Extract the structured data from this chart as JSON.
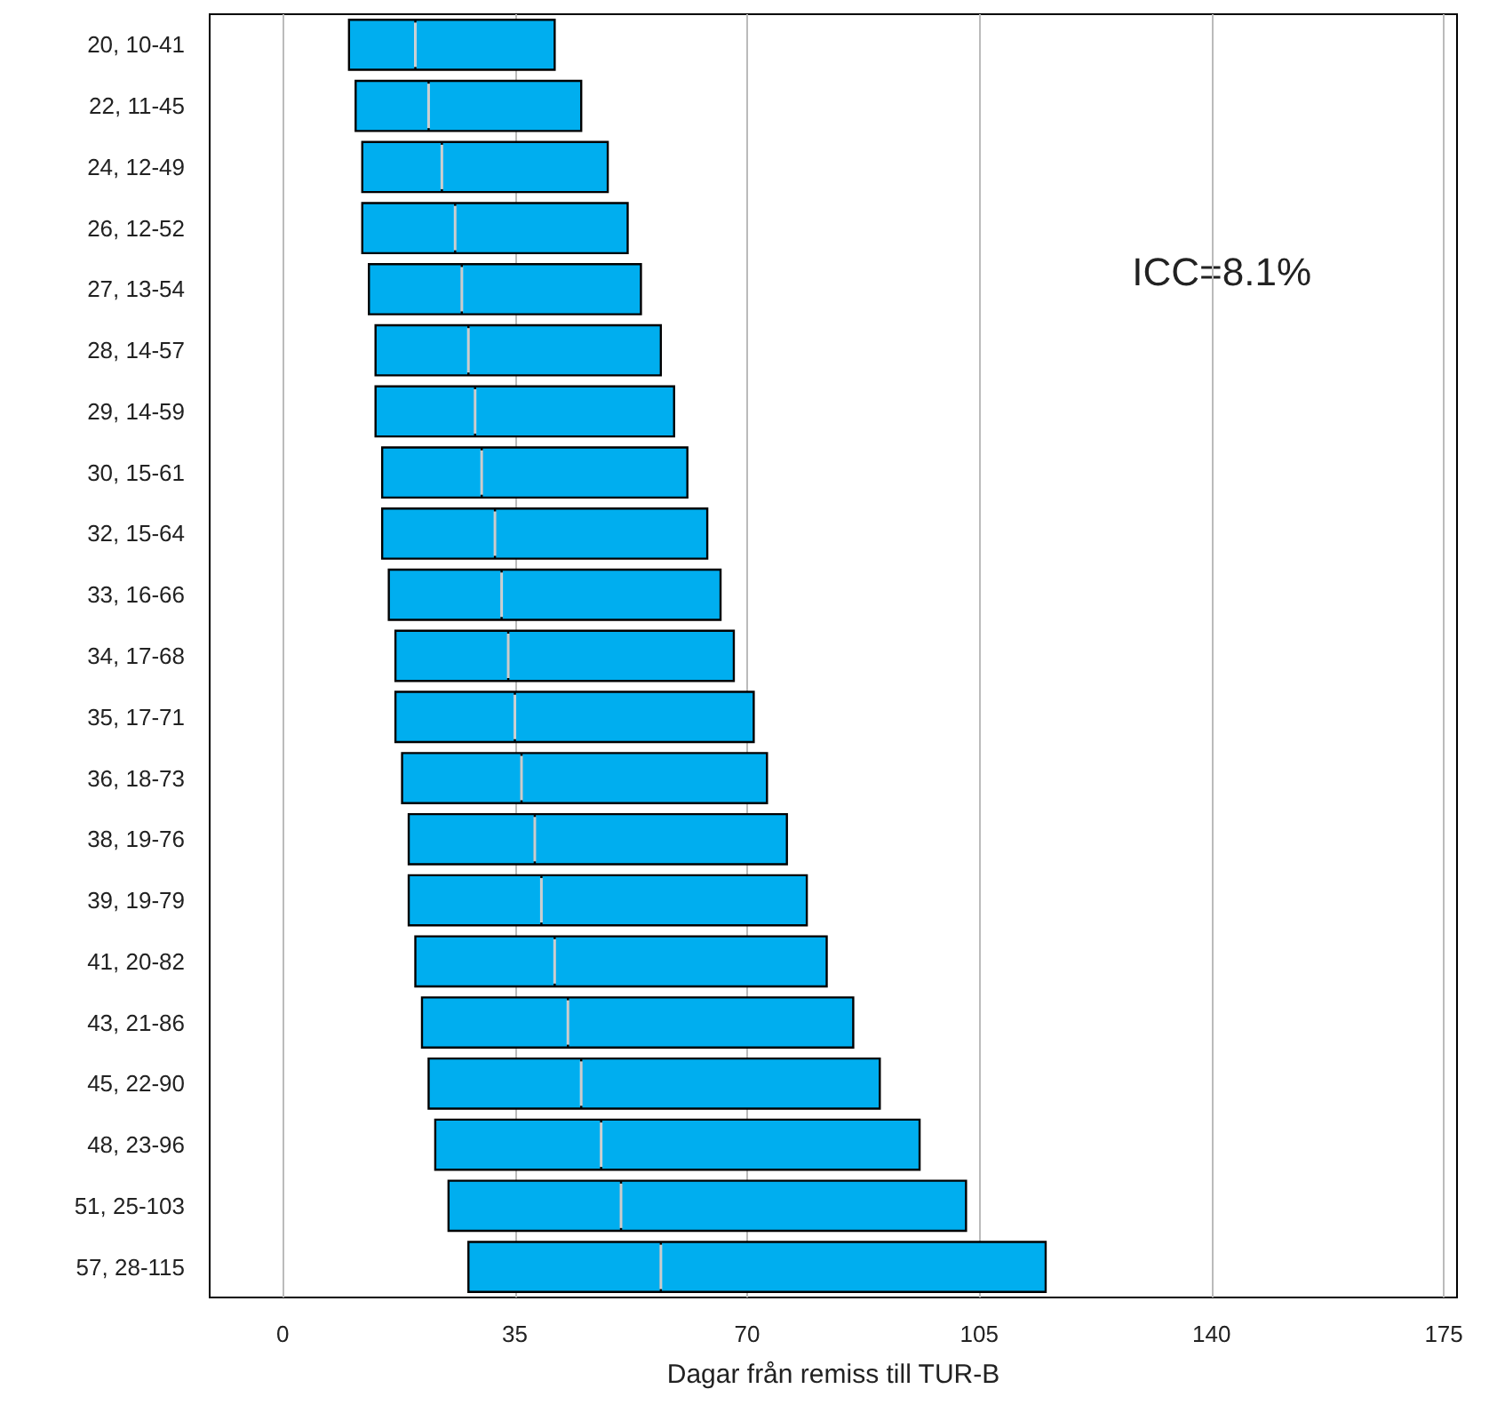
{
  "chart_data": {
    "type": "box",
    "orientation": "horizontal",
    "xlabel": "Dagar från remiss till TUR-B",
    "categories": [
      "20, 10-41",
      "22, 11-45",
      "24, 12-49",
      "26, 12-52",
      "27, 13-54",
      "28, 14-57",
      "29, 14-59",
      "30, 15-61",
      "32, 15-64",
      "33, 16-66",
      "34, 17-68",
      "35, 17-71",
      "36, 18-73",
      "38, 19-76",
      "39, 19-79",
      "41, 20-82",
      "43, 21-86",
      "45, 22-90",
      "48, 23-96",
      "51, 25-103",
      "57, 28-115"
    ],
    "series": [
      {
        "color": "#00aeef",
        "boxes": [
          {
            "low": 10,
            "q1": 10,
            "median": 20,
            "q3": 41,
            "high": 41
          },
          {
            "low": 11,
            "q1": 11,
            "median": 22,
            "q3": 45,
            "high": 45
          },
          {
            "low": 12,
            "q1": 12,
            "median": 24,
            "q3": 49,
            "high": 49
          },
          {
            "low": 12,
            "q1": 12,
            "median": 26,
            "q3": 52,
            "high": 52
          },
          {
            "low": 13,
            "q1": 13,
            "median": 27,
            "q3": 54,
            "high": 54
          },
          {
            "low": 14,
            "q1": 14,
            "median": 28,
            "q3": 57,
            "high": 57
          },
          {
            "low": 14,
            "q1": 14,
            "median": 29,
            "q3": 59,
            "high": 59
          },
          {
            "low": 15,
            "q1": 15,
            "median": 30,
            "q3": 61,
            "high": 61
          },
          {
            "low": 15,
            "q1": 15,
            "median": 32,
            "q3": 64,
            "high": 64
          },
          {
            "low": 16,
            "q1": 16,
            "median": 33,
            "q3": 66,
            "high": 66
          },
          {
            "low": 17,
            "q1": 17,
            "median": 34,
            "q3": 68,
            "high": 68
          },
          {
            "low": 17,
            "q1": 17,
            "median": 35,
            "q3": 71,
            "high": 71
          },
          {
            "low": 18,
            "q1": 18,
            "median": 36,
            "q3": 73,
            "high": 73
          },
          {
            "low": 19,
            "q1": 19,
            "median": 38,
            "q3": 76,
            "high": 76
          },
          {
            "low": 19,
            "q1": 19,
            "median": 39,
            "q3": 79,
            "high": 79
          },
          {
            "low": 20,
            "q1": 20,
            "median": 41,
            "q3": 82,
            "high": 82
          },
          {
            "low": 21,
            "q1": 21,
            "median": 43,
            "q3": 86,
            "high": 86
          },
          {
            "low": 22,
            "q1": 22,
            "median": 45,
            "q3": 90,
            "high": 90
          },
          {
            "low": 23,
            "q1": 23,
            "median": 48,
            "q3": 96,
            "high": 96
          },
          {
            "low": 25,
            "q1": 25,
            "median": 51,
            "q3": 103,
            "high": 103
          },
          {
            "low": 28,
            "q1": 28,
            "median": 57,
            "q3": 115,
            "high": 115
          }
        ]
      }
    ],
    "xlim": [
      -11,
      177
    ],
    "xticks": [
      0,
      35,
      70,
      105,
      140,
      175
    ],
    "grid": "x",
    "annotations": [
      "ICC=8.1%"
    ]
  }
}
